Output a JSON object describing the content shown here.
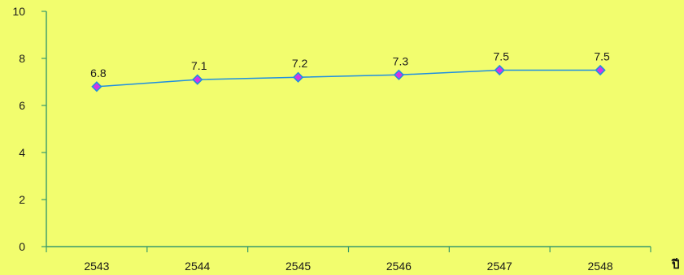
{
  "chart_data": {
    "type": "line",
    "categories": [
      "2543",
      "2544",
      "2545",
      "2546",
      "2547",
      "2548"
    ],
    "series": [
      {
        "values": [
          6.8,
          7.1,
          7.2,
          7.3,
          7.5,
          7.5
        ]
      }
    ],
    "data_labels": [
      "6.8",
      "7.1",
      "7.2",
      "7.3",
      "7.5",
      "7.5"
    ],
    "xlabel": "ปี",
    "ylabel": "",
    "title": "",
    "ylim": [
      0,
      10
    ],
    "yticks": [
      0,
      2,
      4,
      6,
      8,
      10
    ],
    "grid": false,
    "colors": {
      "background": "#f2fd6e",
      "axis": "#3a9a6a",
      "line": "#1f8fe0",
      "marker_fill": "#d633e6",
      "marker_edge": "#1f8fe0"
    }
  }
}
